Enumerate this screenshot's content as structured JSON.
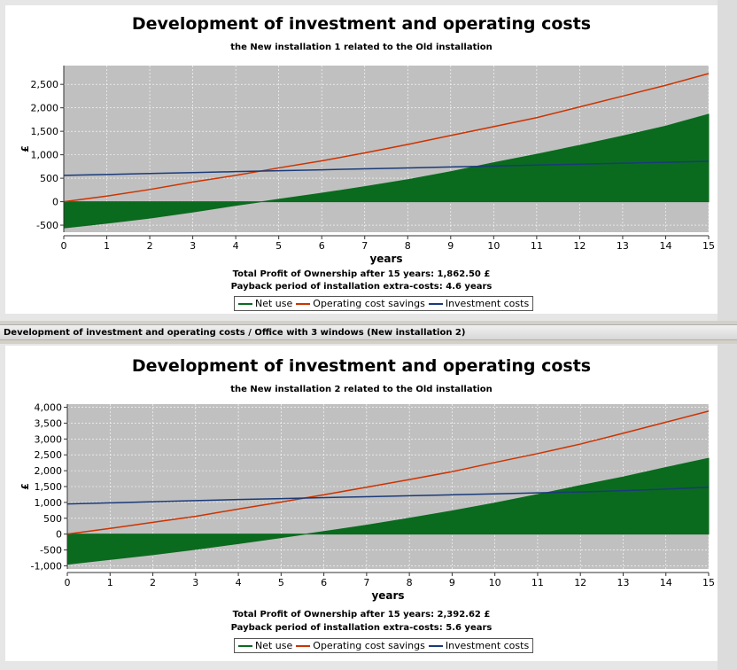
{
  "section_header": "Development of investment and operating costs / Office with 3 windows (New installation 2)",
  "colors": {
    "net_use": "#0a6b1e",
    "operating_cost_savings": "#cc3300",
    "investment_costs": "#1a3a7a",
    "plot_bg": "#c0c0c0"
  },
  "chart_data": [
    {
      "type": "line",
      "title": "Development of investment and operating costs",
      "subtitle": "the New installation 1 related to the Old installation",
      "xlabel": "years",
      "ylabel": "£",
      "xlim": [
        0,
        15
      ],
      "ylim": [
        -650,
        2900
      ],
      "x_ticks": [
        0,
        1,
        2,
        3,
        4,
        5,
        6,
        7,
        8,
        9,
        10,
        11,
        12,
        13,
        14,
        15
      ],
      "y_ticks": [
        -500,
        0,
        500,
        1000,
        1500,
        2000,
        2500
      ],
      "y_tick_labels": [
        "-500",
        "0",
        "500",
        "1,000",
        "1,500",
        "2,000",
        "2,500"
      ],
      "grid": true,
      "legend_position": "bottom",
      "x": [
        0,
        1,
        2,
        3,
        4,
        5,
        6,
        7,
        8,
        9,
        10,
        11,
        12,
        13,
        14,
        15
      ],
      "series": [
        {
          "name": "Net use",
          "kind": "area",
          "values": [
            -560,
            -460,
            -350,
            -220,
            -80,
            50,
            180,
            320,
            470,
            640,
            830,
            1010,
            1200,
            1400,
            1610,
            1862.5
          ]
        },
        {
          "name": "Operating cost savings",
          "kind": "line",
          "values": [
            0,
            120,
            260,
            420,
            560,
            720,
            870,
            1040,
            1220,
            1410,
            1600,
            1790,
            2020,
            2250,
            2480,
            2730
          ]
        },
        {
          "name": "Investment costs",
          "kind": "line",
          "values": [
            560,
            580,
            600,
            620,
            640,
            660,
            680,
            700,
            720,
            740,
            760,
            780,
            800,
            820,
            840,
            860
          ]
        }
      ],
      "info_lines": [
        "Total Profit of Ownership after 15 years: 1,862.50 £",
        "Payback period of installation extra-costs: 4.6 years"
      ]
    },
    {
      "type": "line",
      "title": "Development of investment and operating costs",
      "subtitle": "the New installation 2 related to the Old installation",
      "xlabel": "years",
      "ylabel": "£",
      "xlim": [
        0,
        15
      ],
      "ylim": [
        -1100,
        4100
      ],
      "x_ticks": [
        0,
        1,
        2,
        3,
        4,
        5,
        6,
        7,
        8,
        9,
        10,
        11,
        12,
        13,
        14,
        15
      ],
      "y_ticks": [
        -1000,
        -500,
        0,
        500,
        1000,
        1500,
        2000,
        2500,
        3000,
        3500,
        4000
      ],
      "y_tick_labels": [
        "-1,000",
        "-500",
        "0",
        "500",
        "1,000",
        "1,500",
        "2,000",
        "2,500",
        "3,000",
        "3,500",
        "4,000"
      ],
      "grid": true,
      "legend_position": "bottom",
      "x": [
        0,
        1,
        2,
        3,
        4,
        5,
        6,
        7,
        8,
        9,
        10,
        11,
        12,
        13,
        14,
        15
      ],
      "series": [
        {
          "name": "Net use",
          "kind": "area",
          "values": [
            -950,
            -800,
            -650,
            -480,
            -300,
            -110,
            80,
            280,
            500,
            730,
            980,
            1250,
            1530,
            1800,
            2100,
            2392.62
          ]
        },
        {
          "name": "Operating cost savings",
          "kind": "line",
          "values": [
            0,
            180,
            370,
            560,
            790,
            1010,
            1240,
            1480,
            1720,
            1970,
            2260,
            2540,
            2840,
            3180,
            3530,
            3880
          ]
        },
        {
          "name": "Investment costs",
          "kind": "line",
          "values": [
            950,
            985,
            1020,
            1055,
            1090,
            1120,
            1150,
            1180,
            1210,
            1240,
            1270,
            1300,
            1330,
            1370,
            1420,
            1480
          ]
        }
      ],
      "info_lines": [
        "Total Profit of Ownership after 15 years: 2,392.62 £",
        "Payback period of installation extra-costs: 5.6 years"
      ]
    }
  ]
}
